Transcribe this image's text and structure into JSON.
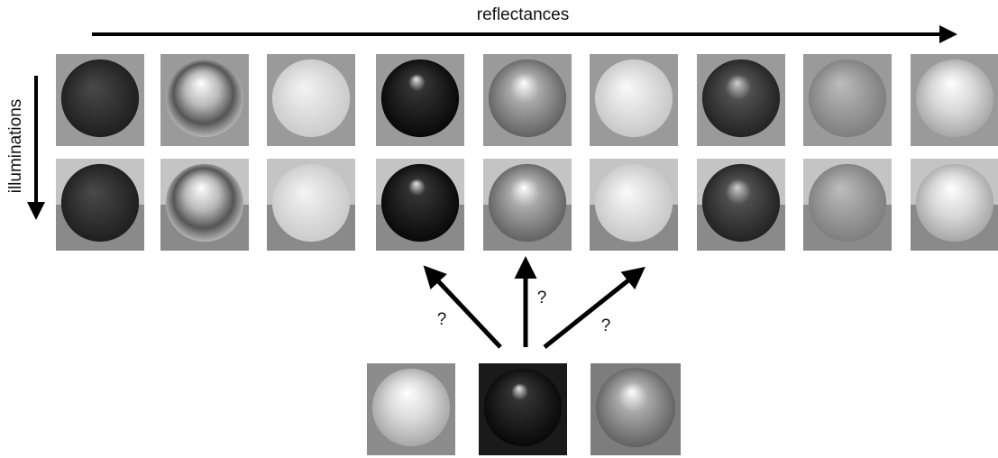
{
  "labels": {
    "top": "reflectances",
    "left": "illuminations"
  },
  "questions": [
    "?",
    "?",
    "?"
  ]
}
